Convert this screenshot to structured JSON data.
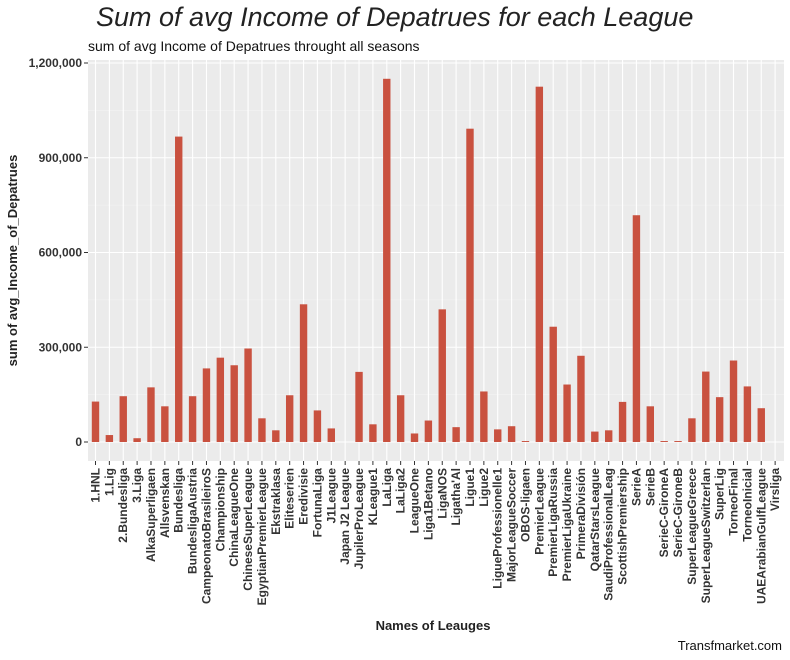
{
  "chart_data": {
    "type": "bar",
    "title": "Sum of avg Income of Depatrues for each League",
    "subtitle": "sum of avg Income of Depatrues throught all seasons",
    "xlabel": "Names of Leauges",
    "ylabel": "sum of avg_Income_of_Depatrues",
    "caption": "Transfmarket.com",
    "ylim": [
      -40000,
      1200000
    ],
    "yticks": [
      0,
      300000,
      600000,
      900000,
      1200000
    ],
    "ytick_labels": [
      "0",
      "300,000",
      "600,000",
      "900,000",
      "1,200,000"
    ],
    "grid": true,
    "legend": "none",
    "bar_color": "#c9513f",
    "panel_color": "#ebebeb",
    "categories": [
      "1.HNL",
      "1.Lig",
      "2.Bundesliga",
      "3.Liga",
      "AlkaSuperligaen",
      "Allsvenskan",
      "Bundesliga",
      "BundesligaAustria",
      "CampeonatoBrasileiroS",
      "Championship",
      "ChinaLeagueOne",
      "ChineseSuperLeague",
      "EgyptianPremierLeague",
      "Ekstraklasa",
      "Eliteserien",
      "Eredivisie",
      "FortunaLiga",
      "J1League",
      "Japan J2 League",
      "JupilerProLeague",
      "KLeague1",
      "LaLiga",
      "LaLiga2",
      "LeagueOne",
      "Liga1Betano",
      "LigaNOS",
      "Ligatha'Al",
      "Ligue1",
      "Ligue2",
      "LigueProfessionelle1",
      "MajorLeagueSoccer",
      "OBOS-ligaen",
      "PremierLeague",
      "PremierLigaRussia",
      "PremierLigaUkraine",
      "PrimeraDivisión",
      "QatarStarsLeague",
      "SaudiProfessionalLeag",
      "ScottishPremiership",
      "SerieA",
      "SerieB",
      "SerieC-GironeA",
      "SerieC-GironeB",
      "SuperLeagueGreece",
      "SuperLeagueSwitzerlan",
      "SuperLig",
      "TorneoFinal",
      "TorneoInicial",
      "UAEArabianGulfLeague",
      "Virsliga"
    ],
    "values": [
      128000,
      22000,
      145000,
      12000,
      173000,
      113000,
      967000,
      145000,
      233000,
      267000,
      243000,
      296000,
      75000,
      37000,
      148000,
      436000,
      100000,
      43000,
      0,
      222000,
      56000,
      1150000,
      148000,
      27000,
      68000,
      420000,
      47000,
      992000,
      160000,
      40000,
      50000,
      3000,
      1125000,
      365000,
      182000,
      273000,
      33000,
      37000,
      127000,
      718000,
      113000,
      3000,
      3000,
      75000,
      223000,
      142000,
      258000,
      176000,
      107000,
      0
    ]
  }
}
